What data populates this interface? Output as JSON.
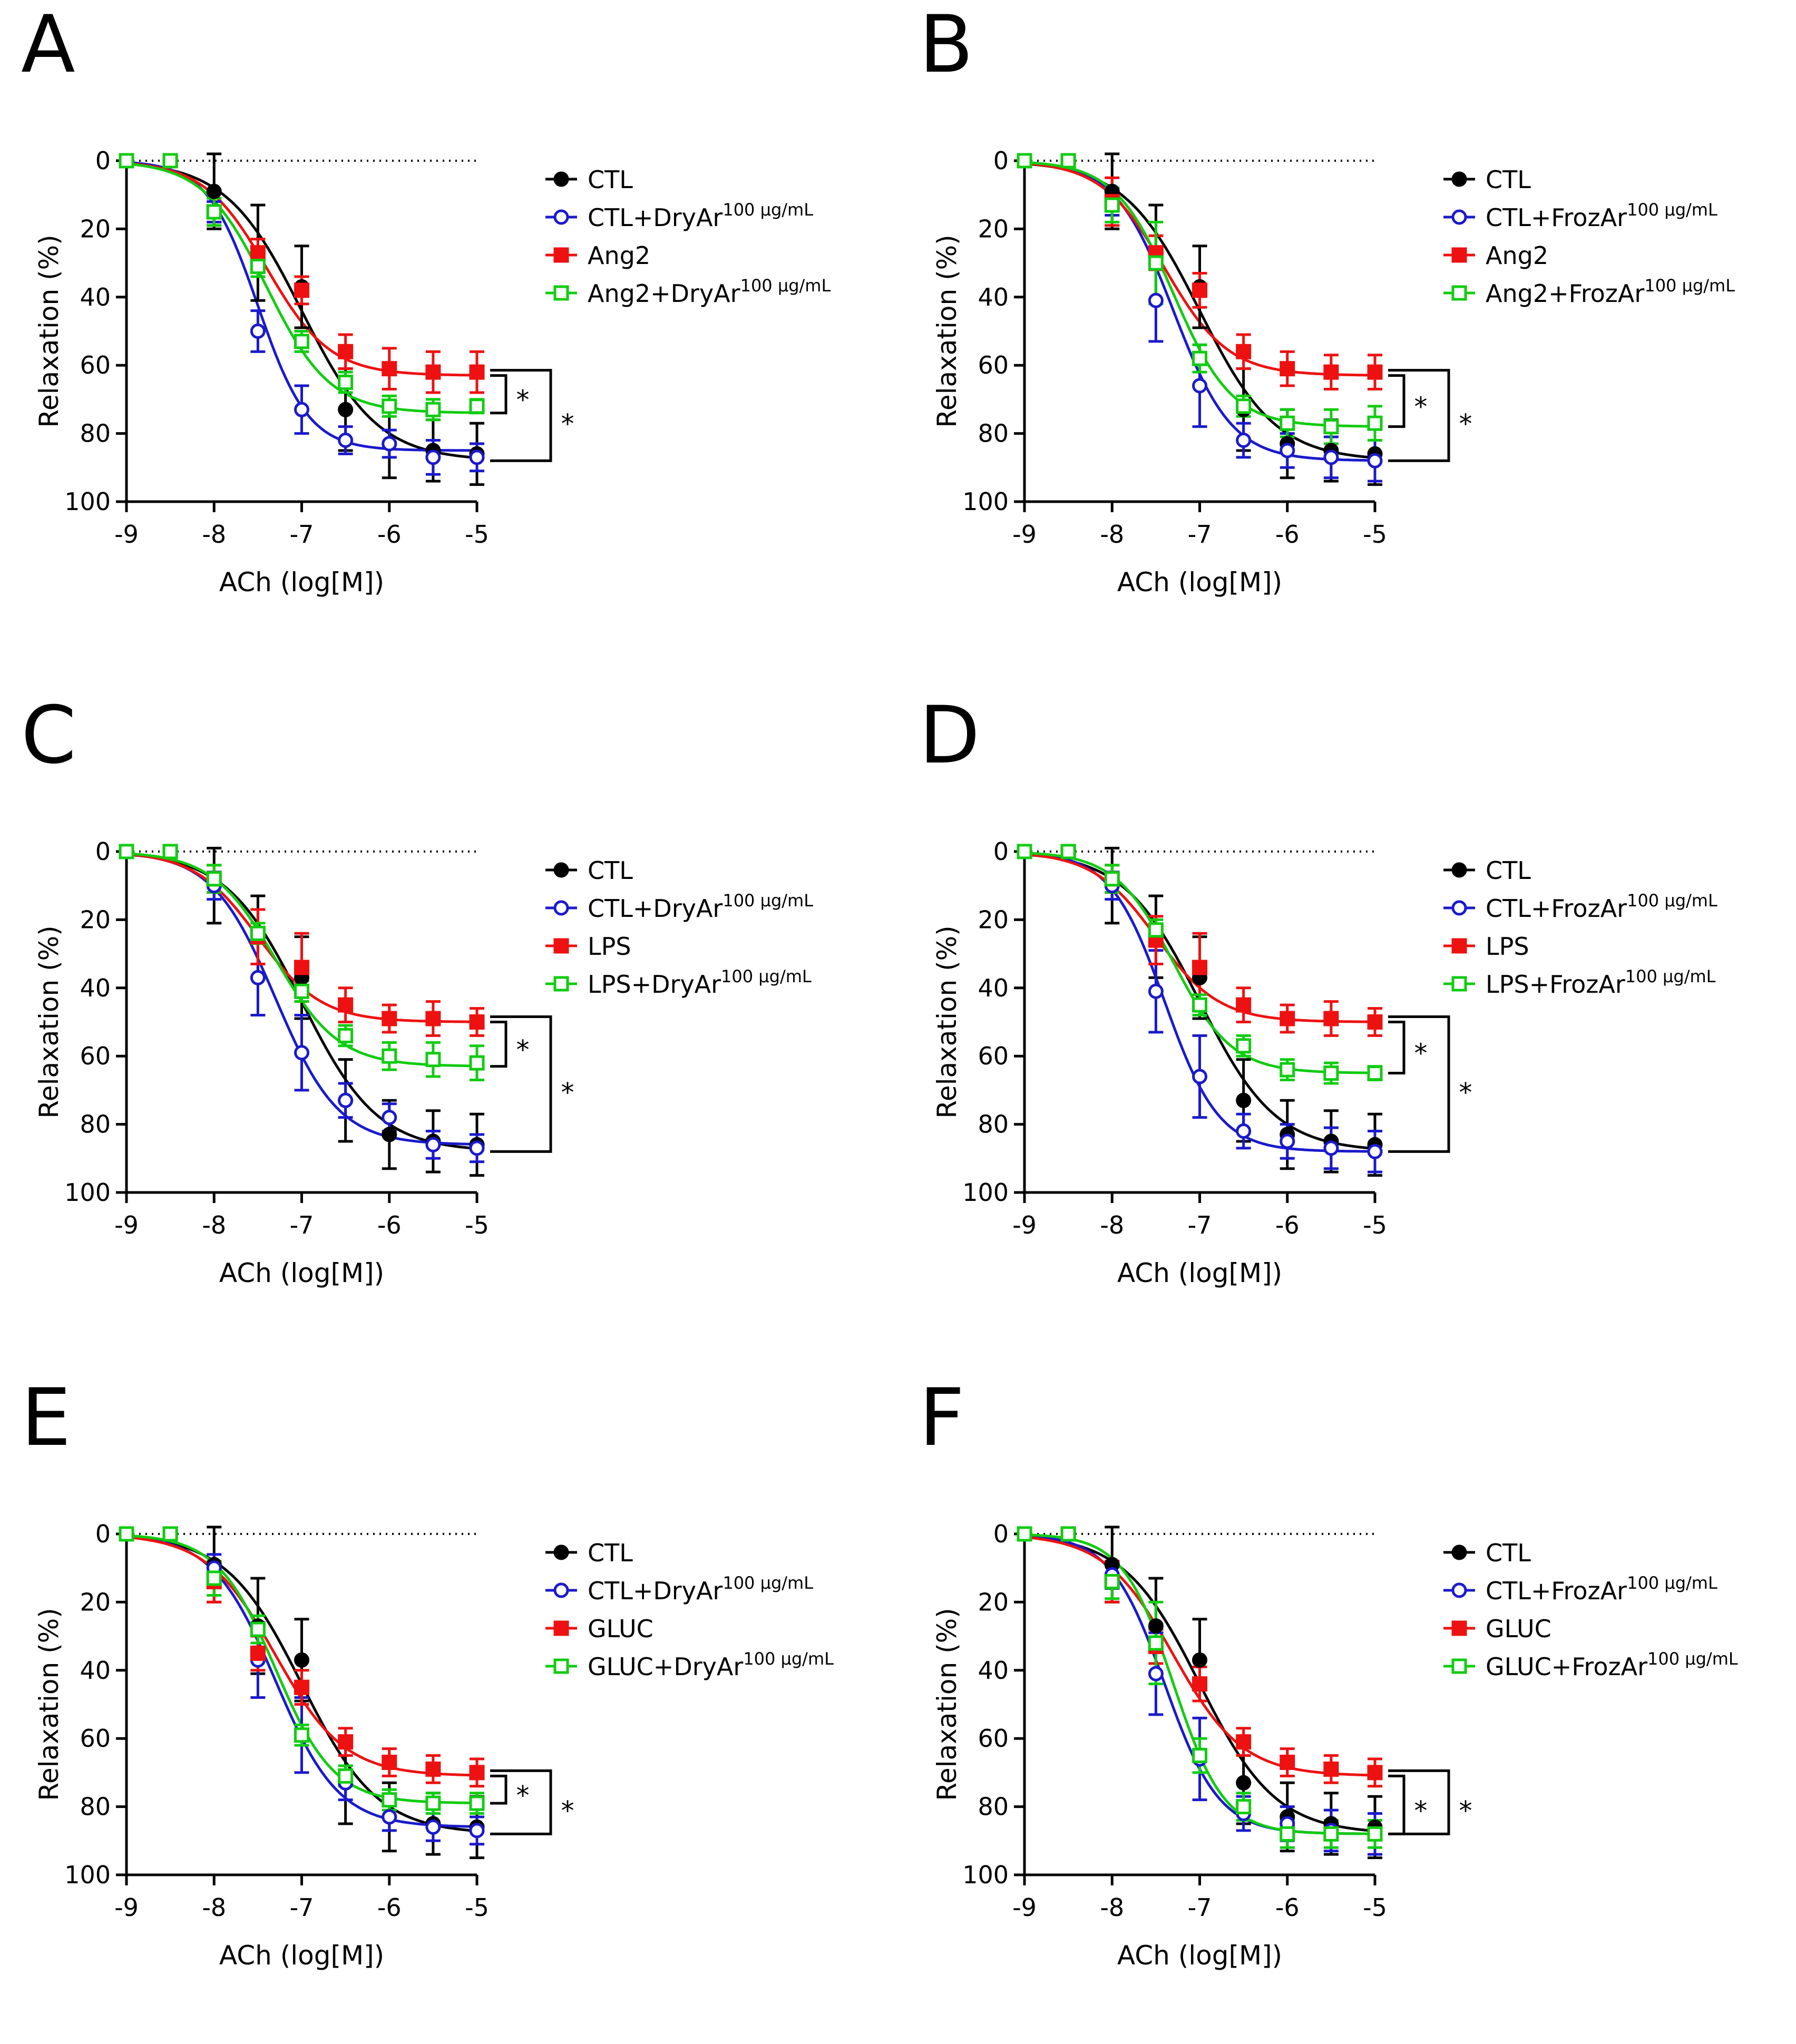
{
  "colors": {
    "CTL": "#000000",
    "CTL_treated": "#1a1acc",
    "disease": "#ee1111",
    "disease_treated": "#11cc11"
  },
  "chart_data": [
    {
      "panel": "A",
      "type": "line",
      "xlabel": "ACh (log[M])",
      "ylabel": "Relaxation (%)",
      "xlim": [
        -9,
        -5
      ],
      "ylim": [
        0,
        100
      ],
      "y_inverted": true,
      "xticks": [
        "-9",
        "-8",
        "-7",
        "-6",
        "-5"
      ],
      "yticks": [
        "0",
        "20",
        "40",
        "60",
        "80",
        "100"
      ],
      "x": [
        -9,
        -8.5,
        -8,
        -7.5,
        -7,
        -6.5,
        -6,
        -5.5,
        -5
      ],
      "series": [
        {
          "name": "CTL",
          "marker": "filled-circle",
          "color": "#000000",
          "values": [
            0,
            0,
            9,
            27,
            37,
            73,
            83,
            85,
            86
          ],
          "errors": [
            0,
            0,
            11,
            14,
            12,
            12,
            10,
            9,
            9
          ],
          "fit": {
            "bottom": 88,
            "logEC50": -7.0,
            "hill": 1.0
          }
        },
        {
          "name": "CTL+DryAr",
          "sup": "100 µg/mL",
          "marker": "open-circle",
          "color": "#1a1acc",
          "values": [
            0,
            0,
            15,
            50,
            73,
            82,
            83,
            87,
            87
          ],
          "errors": [
            0,
            0,
            3,
            6,
            7,
            4,
            4,
            5,
            4
          ],
          "fit": {
            "bottom": 85,
            "logEC50": -7.5,
            "hill": 1.5
          }
        },
        {
          "name": "Ang2",
          "marker": "filled-square",
          "color": "#ee1111",
          "values": [
            0,
            0,
            15,
            27,
            38,
            56,
            61,
            62,
            62
          ],
          "errors": [
            0,
            0,
            4,
            4,
            4,
            5,
            6,
            6,
            6
          ],
          "fit": {
            "bottom": 63,
            "logEC50": -7.4,
            "hill": 1.2
          }
        },
        {
          "name": "Ang2+DryAr",
          "sup": "100 µg/mL",
          "marker": "open-square",
          "color": "#11cc11",
          "values": [
            0,
            0,
            15,
            31,
            53,
            65,
            72,
            73,
            72
          ],
          "errors": [
            0,
            0,
            4,
            3,
            3,
            3,
            3,
            3,
            2
          ],
          "fit": {
            "bottom": 74,
            "logEC50": -7.4,
            "hill": 1.2
          }
        }
      ],
      "significance": [
        "*",
        "*"
      ]
    },
    {
      "panel": "B",
      "type": "line",
      "xlabel": "ACh (log[M])",
      "ylabel": "Relaxation (%)",
      "xlim": [
        -9,
        -5
      ],
      "ylim": [
        0,
        100
      ],
      "y_inverted": true,
      "xticks": [
        "-9",
        "-8",
        "-7",
        "-6",
        "-5"
      ],
      "yticks": [
        "0",
        "20",
        "40",
        "60",
        "80",
        "100"
      ],
      "x": [
        -9,
        -8.5,
        -8,
        -7.5,
        -7,
        -6.5,
        -6,
        -5.5,
        -5
      ],
      "series": [
        {
          "name": "CTL",
          "marker": "filled-circle",
          "color": "#000000",
          "values": [
            0,
            0,
            9,
            27,
            37,
            73,
            83,
            85,
            86
          ],
          "errors": [
            0,
            0,
            11,
            14,
            12,
            12,
            10,
            9,
            9
          ],
          "fit": {
            "bottom": 88,
            "logEC50": -7.0,
            "hill": 1.0
          }
        },
        {
          "name": "CTL+FrozAr",
          "sup": "100 µg/mL",
          "marker": "open-circle",
          "color": "#1a1acc",
          "values": [
            0,
            0,
            12,
            41,
            66,
            82,
            85,
            87,
            88
          ],
          "errors": [
            0,
            0,
            4,
            12,
            12,
            5,
            5,
            6,
            6
          ],
          "fit": {
            "bottom": 88,
            "logEC50": -7.3,
            "hill": 1.3
          }
        },
        {
          "name": "Ang2",
          "marker": "filled-square",
          "color": "#ee1111",
          "values": [
            0,
            0,
            12,
            27,
            38,
            56,
            61,
            62,
            62
          ],
          "errors": [
            0,
            0,
            7,
            5,
            5,
            5,
            5,
            5,
            5
          ],
          "fit": {
            "bottom": 63,
            "logEC50": -7.4,
            "hill": 1.2
          }
        },
        {
          "name": "Ang2+FrozAr",
          "sup": "100 µg/mL",
          "marker": "open-square",
          "color": "#11cc11",
          "values": [
            0,
            0,
            13,
            30,
            58,
            72,
            77,
            78,
            77
          ],
          "errors": [
            0,
            0,
            5,
            12,
            4,
            3,
            4,
            5,
            5
          ],
          "fit": {
            "bottom": 78,
            "logEC50": -7.3,
            "hill": 1.3
          }
        }
      ],
      "significance": [
        "*",
        "*"
      ]
    },
    {
      "panel": "C",
      "type": "line",
      "xlabel": "ACh (log[M])",
      "ylabel": "Relaxation (%)",
      "xlim": [
        -9,
        -5
      ],
      "ylim": [
        0,
        100
      ],
      "y_inverted": true,
      "xticks": [
        "-9",
        "-8",
        "-7",
        "-6",
        "-5"
      ],
      "yticks": [
        "0",
        "20",
        "40",
        "60",
        "80",
        "100"
      ],
      "x": [
        -9,
        -8.5,
        -8,
        -7.5,
        -7,
        -6.5,
        -6,
        -5.5,
        -5
      ],
      "series": [
        {
          "name": "CTL",
          "marker": "filled-circle",
          "color": "#000000",
          "values": [
            0,
            0,
            10,
            25,
            37,
            73,
            83,
            85,
            86
          ],
          "errors": [
            0,
            0,
            11,
            12,
            12,
            12,
            10,
            9,
            9
          ],
          "fit": {
            "bottom": 88,
            "logEC50": -7.0,
            "hill": 1.0
          }
        },
        {
          "name": "CTL+DryAr",
          "sup": "100 µg/mL",
          "marker": "open-circle",
          "color": "#1a1acc",
          "values": [
            0,
            0,
            10,
            37,
            59,
            73,
            78,
            86,
            87
          ],
          "errors": [
            0,
            0,
            4,
            11,
            11,
            5,
            4,
            4,
            4
          ],
          "fit": {
            "bottom": 86,
            "logEC50": -7.3,
            "hill": 1.2
          }
        },
        {
          "name": "LPS",
          "marker": "filled-square",
          "color": "#ee1111",
          "values": [
            0,
            0,
            8,
            25,
            34,
            45,
            49,
            49,
            50
          ],
          "errors": [
            0,
            0,
            4,
            8,
            10,
            5,
            4,
            5,
            4
          ],
          "fit": {
            "bottom": 50,
            "logEC50": -7.5,
            "hill": 1.2
          }
        },
        {
          "name": "LPS+DryAr",
          "sup": "100 µg/mL",
          "marker": "open-square",
          "color": "#11cc11",
          "values": [
            0,
            0,
            8,
            24,
            41,
            54,
            60,
            61,
            62
          ],
          "errors": [
            0,
            0,
            4,
            3,
            3,
            3,
            4,
            5,
            5
          ],
          "fit": {
            "bottom": 63,
            "logEC50": -7.3,
            "hill": 1.2
          }
        }
      ],
      "significance": [
        "*",
        "*"
      ]
    },
    {
      "panel": "D",
      "type": "line",
      "xlabel": "ACh (log[M])",
      "ylabel": "Relaxation (%)",
      "xlim": [
        -9,
        -5
      ],
      "ylim": [
        0,
        100
      ],
      "y_inverted": true,
      "xticks": [
        "-9",
        "-8",
        "-7",
        "-6",
        "-5"
      ],
      "yticks": [
        "0",
        "20",
        "40",
        "60",
        "80",
        "100"
      ],
      "x": [
        -9,
        -8.5,
        -8,
        -7.5,
        -7,
        -6.5,
        -6,
        -5.5,
        -5
      ],
      "series": [
        {
          "name": "CTL",
          "marker": "filled-circle",
          "color": "#000000",
          "values": [
            0,
            0,
            10,
            25,
            37,
            73,
            83,
            85,
            86
          ],
          "errors": [
            0,
            0,
            11,
            12,
            12,
            12,
            10,
            9,
            9
          ],
          "fit": {
            "bottom": 88,
            "logEC50": -7.0,
            "hill": 1.0
          }
        },
        {
          "name": "CTL+FrozAr",
          "sup": "100 µg/mL",
          "marker": "open-circle",
          "color": "#1a1acc",
          "values": [
            0,
            0,
            10,
            41,
            66,
            82,
            85,
            87,
            88
          ],
          "errors": [
            0,
            0,
            4,
            12,
            12,
            5,
            5,
            6,
            6
          ],
          "fit": {
            "bottom": 88,
            "logEC50": -7.4,
            "hill": 1.4
          }
        },
        {
          "name": "LPS",
          "marker": "filled-square",
          "color": "#ee1111",
          "values": [
            0,
            0,
            8,
            26,
            34,
            45,
            49,
            49,
            50
          ],
          "errors": [
            0,
            0,
            4,
            7,
            10,
            5,
            4,
            5,
            4
          ],
          "fit": {
            "bottom": 50,
            "logEC50": -7.5,
            "hill": 1.2
          }
        },
        {
          "name": "LPS+FrozAr",
          "sup": "100 µg/mL",
          "marker": "open-square",
          "color": "#11cc11",
          "values": [
            0,
            0,
            8,
            23,
            45,
            57,
            64,
            65,
            65
          ],
          "errors": [
            0,
            0,
            4,
            3,
            3,
            3,
            3,
            3,
            2
          ],
          "fit": {
            "bottom": 65,
            "logEC50": -7.3,
            "hill": 1.3
          }
        }
      ],
      "significance": [
        "*",
        "*"
      ]
    },
    {
      "panel": "E",
      "type": "line",
      "xlabel": "ACh (log[M])",
      "ylabel": "Relaxation (%)",
      "xlim": [
        -9,
        -5
      ],
      "ylim": [
        0,
        100
      ],
      "y_inverted": true,
      "xticks": [
        "-9",
        "-8",
        "-7",
        "-6",
        "-5"
      ],
      "yticks": [
        "0",
        "20",
        "40",
        "60",
        "80",
        "100"
      ],
      "x": [
        -9,
        -8.5,
        -8,
        -7.5,
        -7,
        -6.5,
        -6,
        -5.5,
        -5
      ],
      "series": [
        {
          "name": "CTL",
          "marker": "filled-circle",
          "color": "#000000",
          "values": [
            0,
            0,
            9,
            27,
            37,
            73,
            83,
            85,
            86
          ],
          "errors": [
            0,
            0,
            11,
            14,
            12,
            12,
            10,
            9,
            9
          ],
          "fit": {
            "bottom": 88,
            "logEC50": -7.0,
            "hill": 1.0
          }
        },
        {
          "name": "CTL+DryAr",
          "sup": "100 µg/mL",
          "marker": "open-circle",
          "color": "#1a1acc",
          "values": [
            0,
            0,
            10,
            37,
            59,
            73,
            83,
            86,
            87
          ],
          "errors": [
            0,
            0,
            4,
            11,
            11,
            5,
            4,
            4,
            4
          ],
          "fit": {
            "bottom": 86,
            "logEC50": -7.3,
            "hill": 1.2
          }
        },
        {
          "name": "GLUC",
          "marker": "filled-square",
          "color": "#ee1111",
          "values": [
            0,
            0,
            14,
            35,
            45,
            61,
            67,
            69,
            70
          ],
          "errors": [
            0,
            0,
            6,
            5,
            5,
            4,
            4,
            4,
            4
          ],
          "fit": {
            "bottom": 71,
            "logEC50": -7.3,
            "hill": 1.1
          }
        },
        {
          "name": "GLUC+DryAr",
          "sup": "100 µg/mL",
          "marker": "open-square",
          "color": "#11cc11",
          "values": [
            0,
            0,
            13,
            28,
            59,
            71,
            78,
            79,
            79
          ],
          "errors": [
            0,
            0,
            5,
            4,
            3,
            3,
            3,
            3,
            3
          ],
          "fit": {
            "bottom": 79,
            "logEC50": -7.3,
            "hill": 1.3
          }
        }
      ],
      "significance": [
        "*",
        "*"
      ]
    },
    {
      "panel": "F",
      "type": "line",
      "xlabel": "ACh (log[M])",
      "ylabel": "Relaxation (%)",
      "xlim": [
        -9,
        -5
      ],
      "ylim": [
        0,
        100
      ],
      "y_inverted": true,
      "xticks": [
        "-9",
        "-8",
        "-7",
        "-6",
        "-5"
      ],
      "yticks": [
        "0",
        "20",
        "40",
        "60",
        "80",
        "100"
      ],
      "x": [
        -9,
        -8.5,
        -8,
        -7.5,
        -7,
        -6.5,
        -6,
        -5.5,
        -5
      ],
      "series": [
        {
          "name": "CTL",
          "marker": "filled-circle",
          "color": "#000000",
          "values": [
            0,
            0,
            9,
            27,
            37,
            73,
            83,
            85,
            86
          ],
          "errors": [
            0,
            0,
            11,
            14,
            12,
            12,
            10,
            9,
            9
          ],
          "fit": {
            "bottom": 88,
            "logEC50": -7.0,
            "hill": 1.0
          }
        },
        {
          "name": "CTL+FrozAr",
          "sup": "100 µg/mL",
          "marker": "open-circle",
          "color": "#1a1acc",
          "values": [
            0,
            0,
            12,
            41,
            66,
            82,
            85,
            87,
            88
          ],
          "errors": [
            0,
            0,
            4,
            12,
            12,
            5,
            5,
            6,
            6
          ],
          "fit": {
            "bottom": 88,
            "logEC50": -7.4,
            "hill": 1.4
          }
        },
        {
          "name": "GLUC",
          "marker": "filled-square",
          "color": "#ee1111",
          "values": [
            0,
            0,
            14,
            33,
            44,
            61,
            67,
            69,
            70
          ],
          "errors": [
            0,
            0,
            6,
            5,
            5,
            4,
            4,
            4,
            4
          ],
          "fit": {
            "bottom": 71,
            "logEC50": -7.3,
            "hill": 1.1
          }
        },
        {
          "name": "GLUC+FrozAr",
          "sup": "100 µg/mL",
          "marker": "open-square",
          "color": "#11cc11",
          "values": [
            0,
            0,
            14,
            32,
            65,
            80,
            88,
            88,
            88
          ],
          "errors": [
            0,
            0,
            5,
            12,
            5,
            4,
            4,
            4,
            4
          ],
          "fit": {
            "bottom": 88,
            "logEC50": -7.3,
            "hill": 1.5
          }
        }
      ],
      "significance": [
        "*",
        "*"
      ]
    }
  ]
}
